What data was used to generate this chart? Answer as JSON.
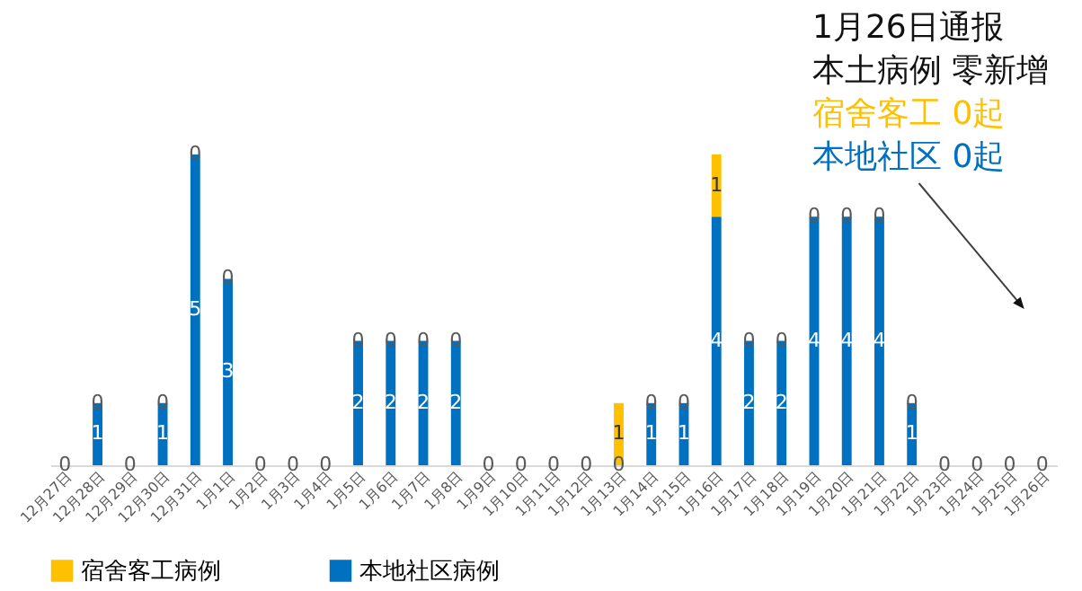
{
  "chart_data": {
    "type": "bar",
    "stacked": true,
    "legend": "bottom",
    "categories": [
      "12月27日",
      "12月28日",
      "12月29日",
      "12月30日",
      "12月31日",
      "1月1日",
      "1月2日",
      "1月3日",
      "1月4日",
      "1月5日",
      "1月6日",
      "1月7日",
      "1月8日",
      "1月9日",
      "1月10日",
      "1月11日",
      "1月12日",
      "1月13日",
      "1月14日",
      "1月15日",
      "1月16日",
      "1月17日",
      "1月18日",
      "1月19日",
      "1月20日",
      "1月21日",
      "1月22日",
      "1月23日",
      "1月24日",
      "1月25日",
      "1月26日"
    ],
    "series": [
      {
        "name": "本地社区病例",
        "color": "#0070c0",
        "values": [
          0,
          1,
          0,
          1,
          5,
          3,
          0,
          0,
          0,
          2,
          2,
          2,
          2,
          0,
          0,
          0,
          0,
          0,
          1,
          1,
          4,
          2,
          2,
          4,
          4,
          4,
          1,
          0,
          0,
          0,
          0
        ],
        "value_labels": [
          "0",
          "1",
          "0",
          "1",
          "5",
          "3",
          "0",
          "0",
          "0",
          "2",
          "2",
          "2",
          "2",
          "0",
          "0",
          "0",
          "0",
          "0",
          "1",
          "1",
          "4",
          "2",
          "2",
          "4",
          "4",
          "4",
          "1",
          "0",
          "0",
          "0",
          "0"
        ]
      },
      {
        "name": "宿舍客工病例",
        "color": "#ffc000",
        "values": [
          0,
          0,
          0,
          0,
          0,
          0,
          0,
          0,
          0,
          0,
          0,
          0,
          0,
          0,
          0,
          0,
          0,
          1,
          0,
          0,
          1,
          0,
          0,
          0,
          0,
          0,
          0,
          0,
          0,
          0,
          0
        ],
        "value_labels": [
          null,
          "0",
          null,
          "0",
          "0",
          "0",
          null,
          null,
          null,
          "0",
          "0",
          "0",
          "0",
          null,
          null,
          null,
          null,
          "1",
          "0",
          "0",
          "1",
          "0",
          "0",
          "0",
          "0",
          "0",
          "0",
          null,
          null,
          null,
          null
        ]
      }
    ],
    "annotations": [
      "1月26日通报",
      "本土病例 零新增",
      "宿舍客工 0起",
      "本地社区 0起"
    ]
  }
}
